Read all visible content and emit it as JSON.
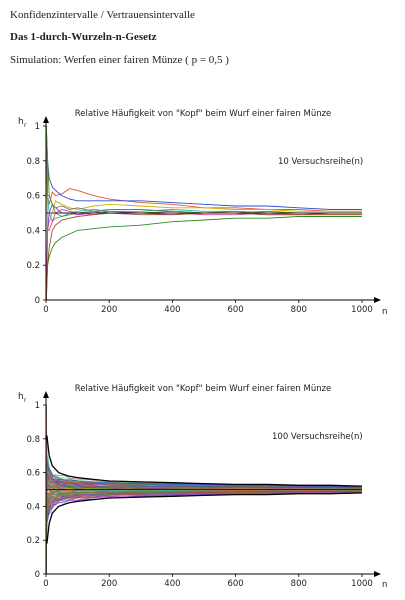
{
  "page": {
    "breadcrumb": "Konfidenzintervalle / Vertrauensintervalle",
    "title": "Das 1-durch-Wurzeln-n-Gesetz",
    "simulation": "Simulation: Werfen einer fairen Münze ( p = 0,5  )"
  },
  "colors": {
    "series_palette": [
      "#e8532b",
      "#2a8a2a",
      "#2b4fd8",
      "#c9b400",
      "#8a2be2",
      "#1fb5b5",
      "#d4458a",
      "#777777",
      "#a0522d",
      "#5a8f29"
    ],
    "envelope": "#000000",
    "axis": "#000000",
    "early_trace": "#8a1bb0"
  },
  "chart_data": [
    {
      "type": "line",
      "title": "Relative Häufigkeit von \"Kopf\" beim Wurf einer fairen Münze",
      "annotation": "10 Versuchsreihe(n)",
      "ylabel_main": "h",
      "ylabel_sub": "r",
      "xlabel": "n",
      "xlim": [
        0,
        1000
      ],
      "ylim": [
        0,
        1
      ],
      "xticks": [
        "0",
        "200",
        "400",
        "600",
        "800",
        "1000"
      ],
      "yticks": [
        "0",
        "0.2",
        "0.4",
        "0.6",
        "0.8",
        "1"
      ],
      "reference_line": 0.5,
      "grid": false,
      "series_count": 10,
      "x": [
        1,
        5,
        10,
        20,
        30,
        50,
        75,
        100,
        150,
        200,
        300,
        400,
        500,
        600,
        700,
        800,
        900,
        1000
      ],
      "series": [
        {
          "values": [
            1.0,
            0.6,
            0.55,
            0.62,
            0.6,
            0.61,
            0.64,
            0.63,
            0.6,
            0.58,
            0.56,
            0.55,
            0.53,
            0.53,
            0.52,
            0.52,
            0.51,
            0.51
          ]
        },
        {
          "values": [
            0.0,
            0.2,
            0.25,
            0.3,
            0.33,
            0.36,
            0.38,
            0.4,
            0.41,
            0.42,
            0.43,
            0.45,
            0.46,
            0.47,
            0.47,
            0.48,
            0.48,
            0.48
          ]
        },
        {
          "values": [
            1.0,
            0.8,
            0.7,
            0.65,
            0.63,
            0.6,
            0.58,
            0.57,
            0.57,
            0.57,
            0.57,
            0.56,
            0.55,
            0.54,
            0.54,
            0.53,
            0.52,
            0.52
          ]
        },
        {
          "values": [
            1.0,
            0.4,
            0.45,
            0.5,
            0.57,
            0.55,
            0.53,
            0.52,
            0.54,
            0.55,
            0.54,
            0.53,
            0.53,
            0.52,
            0.52,
            0.51,
            0.51,
            0.51
          ]
        },
        {
          "values": [
            0.0,
            0.4,
            0.5,
            0.55,
            0.53,
            0.5,
            0.5,
            0.49,
            0.5,
            0.51,
            0.5,
            0.49,
            0.5,
            0.5,
            0.49,
            0.49,
            0.5,
            0.5
          ]
        },
        {
          "values": [
            1.0,
            0.6,
            0.5,
            0.45,
            0.47,
            0.48,
            0.5,
            0.51,
            0.52,
            0.51,
            0.51,
            0.52,
            0.51,
            0.51,
            0.5,
            0.5,
            0.5,
            0.5
          ]
        },
        {
          "values": [
            0.0,
            0.4,
            0.4,
            0.45,
            0.5,
            0.52,
            0.51,
            0.5,
            0.49,
            0.5,
            0.5,
            0.5,
            0.49,
            0.49,
            0.5,
            0.49,
            0.49,
            0.49
          ]
        },
        {
          "values": [
            1.0,
            0.6,
            0.6,
            0.55,
            0.53,
            0.54,
            0.52,
            0.53,
            0.51,
            0.52,
            0.52,
            0.51,
            0.5,
            0.51,
            0.5,
            0.5,
            0.5,
            0.5
          ]
        },
        {
          "values": [
            0.0,
            0.2,
            0.3,
            0.4,
            0.43,
            0.46,
            0.47,
            0.48,
            0.49,
            0.5,
            0.49,
            0.49,
            0.5,
            0.5,
            0.49,
            0.49,
            0.49,
            0.49
          ]
        },
        {
          "values": [
            1.0,
            0.8,
            0.6,
            0.55,
            0.5,
            0.48,
            0.49,
            0.5,
            0.51,
            0.5,
            0.5,
            0.51,
            0.5,
            0.5,
            0.51,
            0.5,
            0.5,
            0.5
          ]
        }
      ]
    },
    {
      "type": "line",
      "title": "Relative Häufigkeit von \"Kopf\" beim Wurf einer fairen Münze",
      "annotation": "100 Versuchsreihe(n)",
      "ylabel_main": "h",
      "ylabel_sub": "r",
      "xlabel": "n",
      "xlim": [
        0,
        1000
      ],
      "ylim": [
        0,
        1
      ],
      "xticks": [
        "0",
        "200",
        "400",
        "600",
        "800",
        "1000"
      ],
      "yticks": [
        "0",
        "0.2",
        "0.4",
        "0.6",
        "0.8",
        "1"
      ],
      "reference_line": 0.5,
      "grid": false,
      "series_count": 100,
      "envelope": {
        "x": [
          3,
          10,
          20,
          40,
          70,
          100,
          150,
          200,
          300,
          400,
          500,
          600,
          700,
          800,
          900,
          1000
        ],
        "upper": [
          0.82,
          0.7,
          0.64,
          0.6,
          0.58,
          0.57,
          0.56,
          0.55,
          0.545,
          0.54,
          0.535,
          0.53,
          0.53,
          0.525,
          0.525,
          0.52
        ],
        "lower": [
          0.18,
          0.3,
          0.36,
          0.4,
          0.42,
          0.43,
          0.44,
          0.45,
          0.455,
          0.46,
          0.465,
          0.47,
          0.47,
          0.475,
          0.475,
          0.48
        ]
      }
    }
  ]
}
